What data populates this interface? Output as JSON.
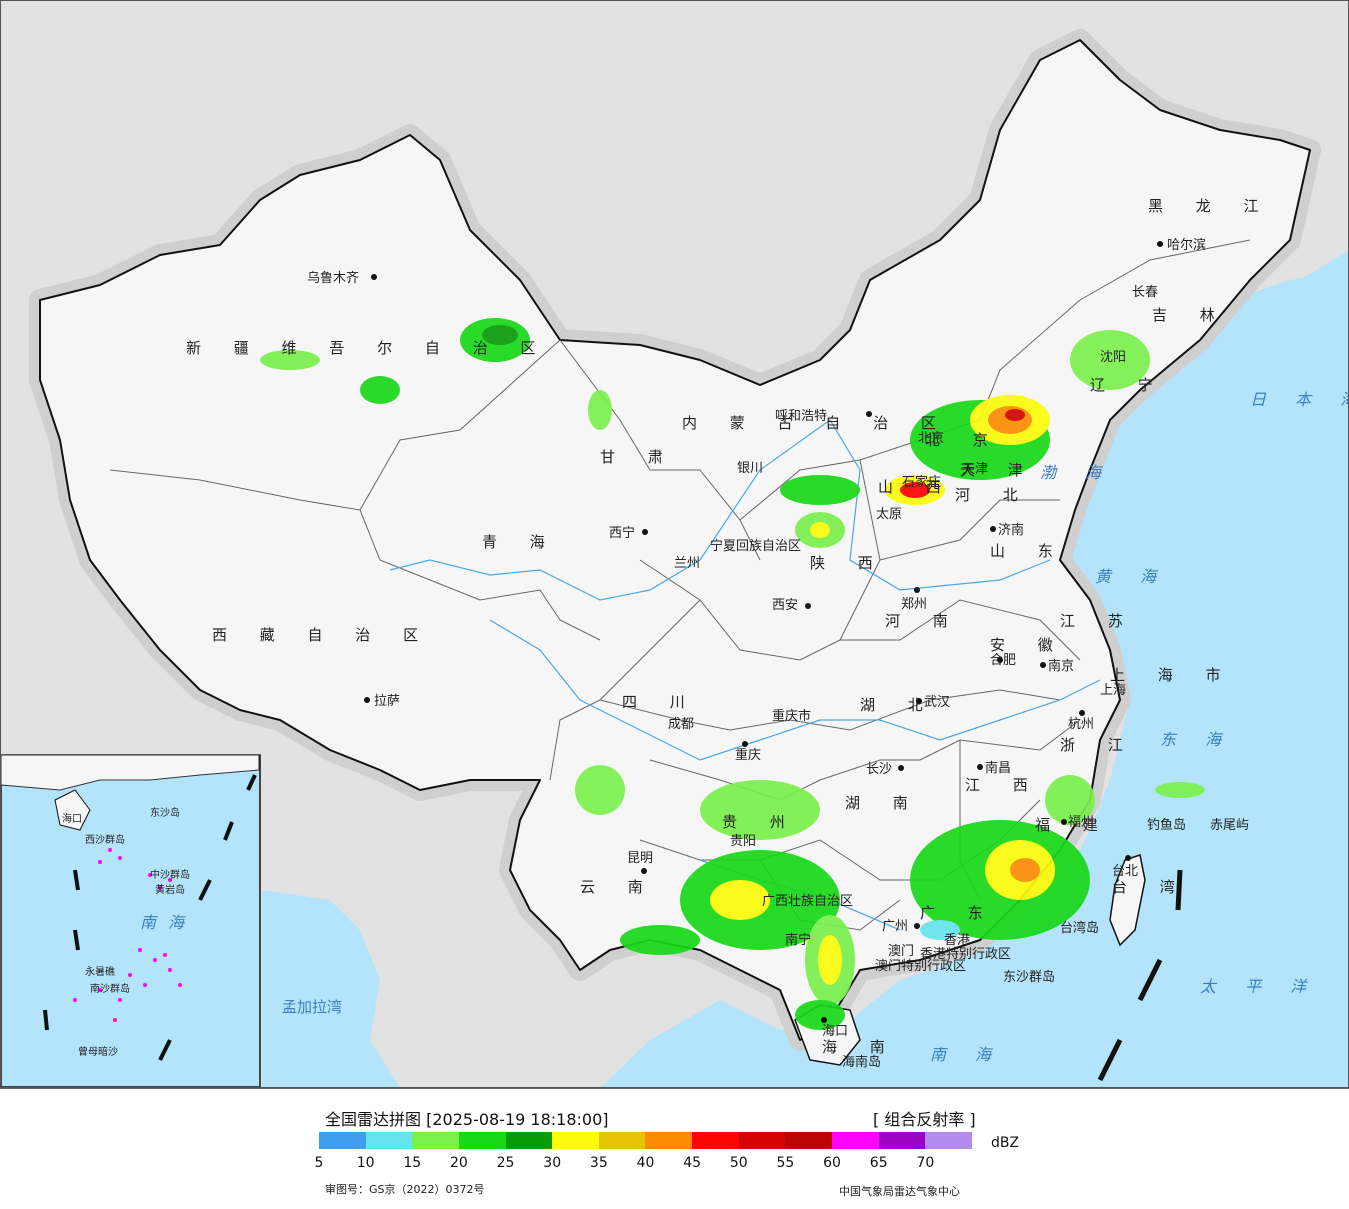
{
  "map": {
    "provinces": [
      "黑 龙 江",
      "吉 林",
      "辽 宁",
      "内 蒙 古 自 治 区",
      "河 北",
      "山 西",
      "北 京",
      "天 津",
      "山 东",
      "河 南",
      "江 苏",
      "安 徽",
      "上 海 市",
      "浙 江",
      "福 建",
      "江 西",
      "湖 北",
      "湖 南",
      "广 东",
      "广西壮族自治区",
      "海 南",
      "重庆市",
      "四 川",
      "贵 州",
      "云 南",
      "西 藏 自 治 区",
      "青 海",
      "甘 肃",
      "陕 西",
      "宁夏回族自治区",
      "新 疆 维 吾 尔 自 治 区",
      "台 湾",
      "香港特别行政区",
      "澳门特别行政区"
    ],
    "cities": [
      "哈尔滨",
      "长春",
      "沈阳",
      "呼和浩特",
      "北京",
      "天津",
      "石家庄",
      "太原",
      "济南",
      "郑州",
      "西安",
      "银川",
      "兰州",
      "西宁",
      "乌鲁木齐",
      "拉萨",
      "成都",
      "重庆",
      "武汉",
      "南京",
      "合肥",
      "上海",
      "杭州",
      "南昌",
      "长沙",
      "福州",
      "台北",
      "贵阳",
      "昆明",
      "南宁",
      "广州",
      "香港",
      "澳门",
      "海口"
    ],
    "seas": [
      "日 本 海",
      "渤 海",
      "黄 海",
      "东 海",
      "南 海",
      "太 平 洋"
    ],
    "foreign": [
      "孟加拉湾"
    ],
    "islands": [
      "钓鱼岛",
      "赤尾屿",
      "台湾岛",
      "东沙群岛",
      "海南岛"
    ],
    "inset_labels": [
      "西沙群岛",
      "中沙群岛",
      "黄岩岛",
      "南沙群岛",
      "永暑礁",
      "曾母暗沙",
      "海口",
      "东沙岛",
      "南海"
    ],
    "colors": {
      "land": "#f4f4f4",
      "sea": "#b4e4fb",
      "outside": "#e2e2e2",
      "border": "#111111"
    }
  },
  "legend": {
    "title": "全国雷达拼图 [2025-08-19 18:18:00]",
    "product": "[ 组合反射率 ]",
    "unit": "dBZ",
    "ticks": [
      "5",
      "10",
      "15",
      "20",
      "25",
      "30",
      "35",
      "40",
      "45",
      "50",
      "55",
      "60",
      "65",
      "70"
    ],
    "colors": [
      "#3f9ef0",
      "#66e4ee",
      "#7bf04c",
      "#18d818",
      "#0a9a0a",
      "#fbfb0a",
      "#e6c408",
      "#fc8c04",
      "#fc0404",
      "#d40404",
      "#bc0404",
      "#fc04fc",
      "#9c04c4",
      "#b48cf0"
    ],
    "approval": "审图号：GS京（2022）0372号",
    "agency": "中国气象局雷达气象中心"
  }
}
